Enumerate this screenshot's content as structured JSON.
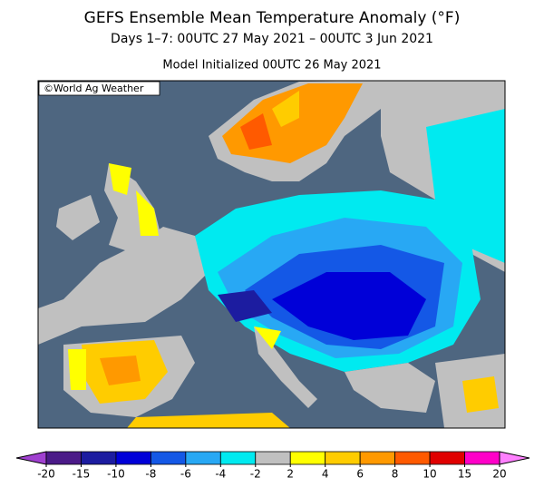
{
  "header": {
    "title": "GEFS Ensemble Mean Temperature Anomaly (°F)",
    "subtitle": "Days 1–7: 00UTC 27 May 2021 – 00UTC 3 Jun 2021",
    "initialized": "Model Initialized 00UTC 26 May 2021"
  },
  "map": {
    "credit": "©World Ag Weather"
  },
  "colorbar": {
    "ticks": [
      -20,
      -15,
      -10,
      -8,
      -6,
      -4,
      -2,
      2,
      4,
      6,
      8,
      10,
      15,
      20
    ],
    "colors": [
      "#a040d0",
      "#4b1a88",
      "#1c1ca0",
      "#0000d8",
      "#1458e6",
      "#28a8f4",
      "#00eaf0",
      "#c0c0c0",
      "#ffff00",
      "#ffcc00",
      "#ff9900",
      "#ff5a00",
      "#e00000",
      "#ff00c8",
      "#ff80ff"
    ]
  }
}
